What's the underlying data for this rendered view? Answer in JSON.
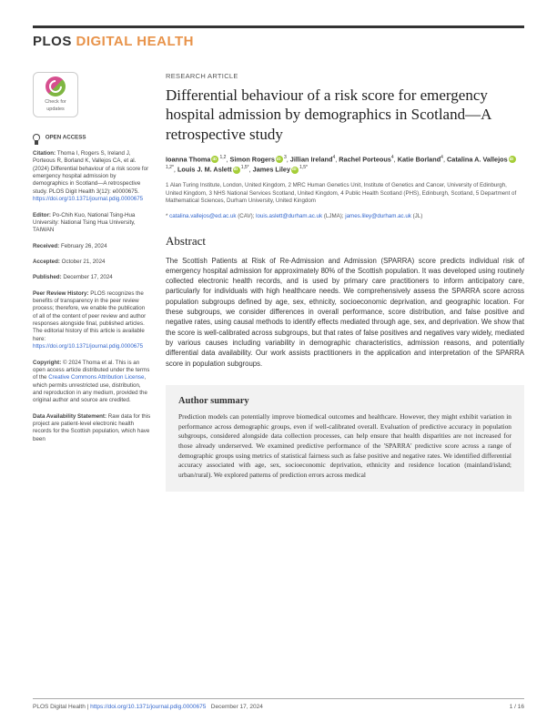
{
  "journal": {
    "plos": "PLOS",
    "dh": "DIGITAL HEALTH"
  },
  "badge": {
    "line1": "Check for",
    "line2": "updates"
  },
  "openAccess": "OPEN ACCESS",
  "citation": {
    "label": "Citation:",
    "text": "Thoma I, Rogers S, Ireland J, Porteous R, Borland K, Vallejos CA, et al. (2024) Differential behaviour of a risk score for emergency hospital admission by demographics in Scotland—A retrospective study. PLOS Digit Health 3(12): e0000675.",
    "doi": "https://doi.org/10.1371/journal.pdig.0000675"
  },
  "editor": {
    "label": "Editor:",
    "text": "Po-Chih Kuo, National Tsing-Hua University: National Tsing Hua University, TAIWAN"
  },
  "received": {
    "label": "Received:",
    "text": "February 26, 2024"
  },
  "accepted": {
    "label": "Accepted:",
    "text": "October 21, 2024"
  },
  "published": {
    "label": "Published:",
    "text": "December 17, 2024"
  },
  "peerReview": {
    "label": "Peer Review History:",
    "text": "PLOS recognizes the benefits of transparency in the peer review process; therefore, we enable the publication of all of the content of peer review and author responses alongside final, published articles. The editorial history of this article is available here:",
    "link": "https://doi.org/10.1371/journal.pdig.0000675"
  },
  "copyright": {
    "label": "Copyright:",
    "text1": "© 2024 Thoma et al. This is an open access article distributed under the terms of the",
    "link": "Creative Commons Attribution License",
    "text2": ", which permits unrestricted use, distribution, and reproduction in any medium, provided the original author and source are credited."
  },
  "dataAvail": {
    "label": "Data Availability Statement:",
    "text": "Raw data for this project are patient-level electronic health records for the Scottish population, which have been"
  },
  "articleType": "RESEARCH ARTICLE",
  "title": "Differential behaviour of a risk score for emergency hospital admission by demographics in Scotland—A retrospective study",
  "authors": {
    "a1": "Ioanna Thoma",
    "a1sup": "1,2",
    "a2": "Simon Rogers",
    "a2sup": "3",
    "a3": "Jillian Ireland",
    "a3sup": "4",
    "a4": "Rachel Porteous",
    "a4sup": "4",
    "a5": "Katie Borland",
    "a5sup": "4",
    "a6": "Catalina A. Vallejos",
    "a6sup": "1,2*",
    "a7": "Louis J. M. Aslett",
    "a7sup": "1,5*",
    "a8": "James Liley",
    "a8sup": "1,5*"
  },
  "affiliations": "1 Alan Turing Institute, London, United Kingdom, 2 MRC Human Genetics Unit, Institute of Genetics and Cancer, University of Edinburgh, United Kingdom, 3 NHS National Services Scotland, United Kingdom, 4 Public Health Scotland (PHS), Edinburgh, Scotland, 5 Department of Mathematical Sciences, Durham University, United Kingdom",
  "corresp": {
    "star": "*",
    "e1": "catalina.vallejos@ed.ac.uk",
    "n1": "(CAV);",
    "e2": "louis.aslett@durham.ac.uk",
    "n2": "(LJMA);",
    "e3": "james.liley@durham.ac.uk",
    "n3": "(JL)"
  },
  "abstractHeading": "Abstract",
  "abstractText": "The Scottish Patients at Risk of Re-Admission and Admission (SPARRA) score predicts individual risk of emergency hospital admission for approximately 80% of the Scottish population. It was developed using routinely collected electronic health records, and is used by primary care practitioners to inform anticipatory care, particularly for individuals with high healthcare needs. We comprehensively assess the SPARRA score across population subgroups defined by age, sex, ethnicity, socioeconomic deprivation, and geographic location. For these subgroups, we consider differences in overall performance, score distribution, and false positive and negative rates, using causal methods to identify effects mediated through age, sex, and deprivation. We show that the score is well-calibrated across subgroups, but that rates of false positives and negatives vary widely, mediated by various causes including variability in demographic characteristics, admission reasons, and potentially differential data availability. Our work assists practitioners in the application and interpretation of the SPARRA score in population subgroups.",
  "summaryHeading": "Author summary",
  "summaryText": "Prediction models can potentially improve biomedical outcomes and healthcare. However, they might exhibit variation in performance across demographic groups, even if well-calibrated overall. Evaluation of predictive accuracy in population subgroups, considered alongside data collection processes, can help ensure that health disparities are not increased for those already underserved. We examined predictive performance of the 'SPARRA' predictive score across a range of demographic groups using metrics of statistical fairness such as false positive and negative rates. We identified differential accuracy associated with age, sex, socioeconomic deprivation, ethnicity and residence location (mainland/island; urban/rural). We explored patterns of prediction errors across medical",
  "footer": {
    "journal": "PLOS Digital Health |",
    "doi": "https://doi.org/10.1371/journal.pdig.0000675",
    "date": "December 17, 2024",
    "page": "1 / 16"
  },
  "colors": {
    "accent": "#e8934a",
    "link": "#3366cc",
    "orcid": "#a6ce39",
    "summaryBg": "#f2f2f2"
  }
}
